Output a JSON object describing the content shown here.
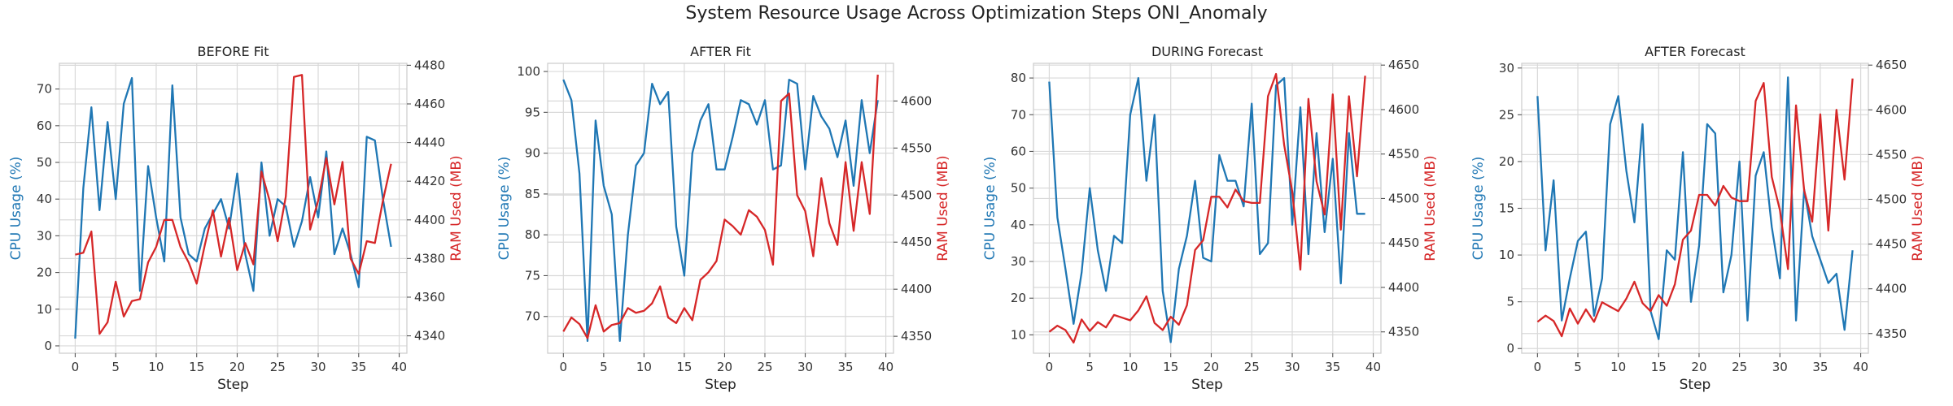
{
  "figure": {
    "title": "System Resource Usage Across Optimization Steps ONI_Anomaly",
    "cpu_color": "#1f77b4",
    "ram_color": "#d62728"
  },
  "chart_data": [
    {
      "type": "line",
      "title": "BEFORE Fit",
      "xlabel": "Step",
      "ylabel": "CPU Usage (%)",
      "ylabel_right": "RAM Used (MB)",
      "xlim": [
        -1.95,
        40.95
      ],
      "ylim": [
        -2,
        77
      ],
      "ylim_right": [
        4331,
        4481
      ],
      "xticks": [
        0,
        5,
        10,
        15,
        20,
        25,
        30,
        35,
        40
      ],
      "yticks": [
        0,
        10,
        20,
        30,
        40,
        50,
        60,
        70
      ],
      "yticks_right": [
        4340,
        4360,
        4380,
        4400,
        4420,
        4440,
        4460,
        4480
      ],
      "grid": true,
      "x": [
        0,
        1,
        2,
        3,
        4,
        5,
        6,
        7,
        8,
        9,
        10,
        11,
        12,
        13,
        14,
        15,
        16,
        17,
        18,
        19,
        20,
        21,
        22,
        23,
        24,
        25,
        26,
        27,
        28,
        29,
        30,
        31,
        32,
        33,
        34,
        35,
        36,
        37,
        38,
        39
      ],
      "series": [
        {
          "name": "CPU Usage (%)",
          "axis": "left",
          "values": [
            2,
            43,
            65,
            37,
            61,
            40,
            66,
            73,
            15,
            49,
            35,
            23,
            71,
            35,
            25,
            23,
            32,
            36,
            40,
            32,
            47,
            25,
            15,
            50,
            30,
            40,
            38,
            27,
            34,
            46,
            35,
            53,
            25,
            32,
            25,
            16,
            57,
            56,
            40,
            27
          ]
        },
        {
          "name": "RAM Used (MB)",
          "axis": "right",
          "values": [
            4382,
            4383,
            4394,
            4341,
            4347,
            4368,
            4350,
            4358,
            4359,
            4378,
            4386,
            4400,
            4400,
            4386,
            4378,
            4367,
            4387,
            4405,
            4381,
            4401,
            4374,
            4388,
            4377,
            4425,
            4410,
            4389,
            4412,
            4474,
            4475,
            4395,
            4410,
            4432,
            4408,
            4430,
            4380,
            4372,
            4389,
            4388,
            4410,
            4429
          ]
        }
      ]
    },
    {
      "type": "line",
      "title": "AFTER Fit",
      "xlabel": "Step",
      "ylabel": "CPU Usage (%)",
      "ylabel_right": "RAM Used (MB)",
      "xlim": [
        -1.95,
        40.95
      ],
      "ylim": [
        65.5,
        101
      ],
      "ylim_right": [
        4332,
        4640
      ],
      "xticks": [
        0,
        5,
        10,
        15,
        20,
        25,
        30,
        35,
        40
      ],
      "yticks": [
        70,
        75,
        80,
        85,
        90,
        95,
        100
      ],
      "yticks_right": [
        4350,
        4400,
        4450,
        4500,
        4550,
        4600
      ],
      "grid": true,
      "x": [
        0,
        1,
        2,
        3,
        4,
        5,
        6,
        7,
        8,
        9,
        10,
        11,
        12,
        13,
        14,
        15,
        16,
        17,
        18,
        19,
        20,
        21,
        22,
        23,
        24,
        25,
        26,
        27,
        28,
        29,
        30,
        31,
        32,
        33,
        34,
        35,
        36,
        37,
        38,
        39
      ],
      "series": [
        {
          "name": "CPU Usage (%)",
          "axis": "left",
          "values": [
            99,
            96.5,
            87.5,
            67,
            94,
            86,
            82.5,
            67,
            80,
            88.5,
            90,
            98.5,
            96,
            97.5,
            81,
            75,
            90,
            94,
            96,
            88,
            88,
            92,
            96.5,
            96,
            93.5,
            96.5,
            88,
            88.5,
            99,
            98.5,
            88,
            97,
            94.5,
            93,
            89.5,
            94,
            86,
            96.5,
            90,
            96.5
          ]
        },
        {
          "name": "RAM Used (MB)",
          "axis": "right",
          "values": [
            4355,
            4370,
            4363,
            4348,
            4383,
            4355,
            4362,
            4364,
            4380,
            4375,
            4377,
            4385,
            4403,
            4370,
            4364,
            4380,
            4367,
            4410,
            4418,
            4430,
            4474,
            4467,
            4458,
            4484,
            4477,
            4463,
            4426,
            4600,
            4608,
            4500,
            4483,
            4435,
            4518,
            4470,
            4447,
            4535,
            4462,
            4535,
            4480,
            4628
          ]
        }
      ]
    },
    {
      "type": "line",
      "title": "DURING Forecast",
      "xlabel": "Step",
      "ylabel": "CPU Usage (%)",
      "ylabel_right": "RAM Used (MB)",
      "xlim": [
        -1.95,
        40.95
      ],
      "ylim": [
        5,
        84
      ],
      "ylim_right": [
        4326,
        4652
      ],
      "xticks": [
        0,
        5,
        10,
        15,
        20,
        25,
        30,
        35,
        40
      ],
      "yticks": [
        10,
        20,
        30,
        40,
        50,
        60,
        70,
        80
      ],
      "yticks_right": [
        4350,
        4400,
        4450,
        4500,
        4550,
        4600,
        4650
      ],
      "grid": true,
      "x": [
        0,
        1,
        2,
        3,
        4,
        5,
        6,
        7,
        8,
        9,
        10,
        11,
        12,
        13,
        14,
        15,
        16,
        17,
        18,
        19,
        20,
        21,
        22,
        23,
        24,
        25,
        26,
        27,
        28,
        29,
        30,
        31,
        32,
        33,
        34,
        35,
        36,
        37,
        38,
        39
      ],
      "series": [
        {
          "name": "CPU Usage (%)",
          "axis": "left",
          "values": [
            79,
            42,
            28,
            13,
            27,
            50,
            33,
            22,
            37,
            35,
            70,
            80,
            52,
            70,
            22,
            8,
            28,
            37,
            52,
            31,
            30,
            59,
            52,
            52,
            45,
            73,
            32,
            35,
            78,
            80,
            40,
            72,
            32,
            65,
            38,
            58,
            24,
            65,
            43,
            43
          ]
        },
        {
          "name": "RAM Used (MB)",
          "axis": "right",
          "values": [
            4350,
            4357,
            4352,
            4338,
            4364,
            4351,
            4361,
            4355,
            4369,
            4366,
            4363,
            4374,
            4390,
            4360,
            4352,
            4367,
            4358,
            4380,
            4442,
            4453,
            4502,
            4502,
            4490,
            4510,
            4497,
            4495,
            4495,
            4615,
            4640,
            4560,
            4508,
            4420,
            4612,
            4519,
            4482,
            4617,
            4465,
            4615,
            4525,
            4638
          ]
        }
      ]
    },
    {
      "type": "line",
      "title": "AFTER Forecast",
      "xlabel": "Step",
      "ylabel": "CPU Usage (%)",
      "ylabel_right": "RAM Used (MB)",
      "xlim": [
        -1.95,
        40.95
      ],
      "ylim": [
        -0.5,
        30.5
      ],
      "ylim_right": [
        4328,
        4652
      ],
      "xticks": [
        0,
        5,
        10,
        15,
        20,
        25,
        30,
        35,
        40
      ],
      "yticks": [
        0,
        5,
        10,
        15,
        20,
        25,
        30
      ],
      "yticks_right": [
        4350,
        4400,
        4450,
        4500,
        4550,
        4600,
        4650
      ],
      "grid": true,
      "x": [
        0,
        1,
        2,
        3,
        4,
        5,
        6,
        7,
        8,
        9,
        10,
        11,
        12,
        13,
        14,
        15,
        16,
        17,
        18,
        19,
        20,
        21,
        22,
        23,
        24,
        25,
        26,
        27,
        28,
        29,
        30,
        31,
        32,
        33,
        34,
        35,
        36,
        37,
        38,
        39
      ],
      "series": [
        {
          "name": "CPU Usage (%)",
          "axis": "left",
          "values": [
            27,
            10.5,
            18,
            3,
            7.5,
            11.5,
            12.5,
            3.5,
            7.5,
            24,
            27,
            19,
            13.5,
            24,
            4,
            1,
            10.5,
            9.5,
            21,
            5,
            11,
            24,
            23,
            6,
            10,
            20,
            3,
            18.5,
            21,
            13,
            7.5,
            29,
            3,
            17,
            12,
            9.5,
            7,
            8,
            2,
            10.5
          ]
        },
        {
          "name": "RAM Used (MB)",
          "axis": "right",
          "values": [
            4363,
            4370,
            4364,
            4347,
            4378,
            4361,
            4377,
            4363,
            4385,
            4380,
            4375,
            4389,
            4408,
            4384,
            4375,
            4393,
            4381,
            4405,
            4455,
            4465,
            4505,
            4505,
            4493,
            4515,
            4502,
            4498,
            4498,
            4610,
            4630,
            4525,
            4488,
            4422,
            4605,
            4510,
            4475,
            4595,
            4465,
            4600,
            4522,
            4635
          ]
        }
      ]
    }
  ]
}
